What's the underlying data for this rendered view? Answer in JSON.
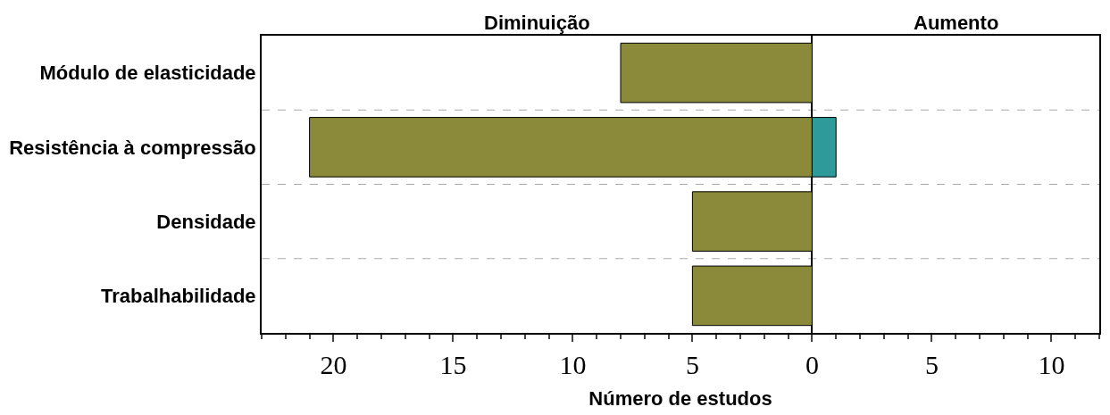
{
  "chart_data": {
    "type": "bar",
    "orientation": "horizontal",
    "stacked": true,
    "categories": [
      "Módulo de elasticidade",
      "Resistência à compressão",
      "Densidade",
      "Trabalhabilidade"
    ],
    "series": [
      {
        "color": "#8a8a3a",
        "values": [
          -8,
          -21,
          -5,
          -5
        ]
      },
      {
        "color": "#2f9a9a",
        "values": [
          null,
          1,
          null,
          null
        ]
      }
    ],
    "xlabel": "Número de estudos",
    "xlim": [
      -23,
      12
    ],
    "xticks": [
      {
        "value": -20,
        "label": "20"
      },
      {
        "value": -15,
        "label": "15"
      },
      {
        "value": -10,
        "label": "10"
      },
      {
        "value": -5,
        "label": "5"
      },
      0,
      5,
      10
    ],
    "annotations": [
      "Diminuição",
      "Aumento"
    ],
    "grid": false
  }
}
